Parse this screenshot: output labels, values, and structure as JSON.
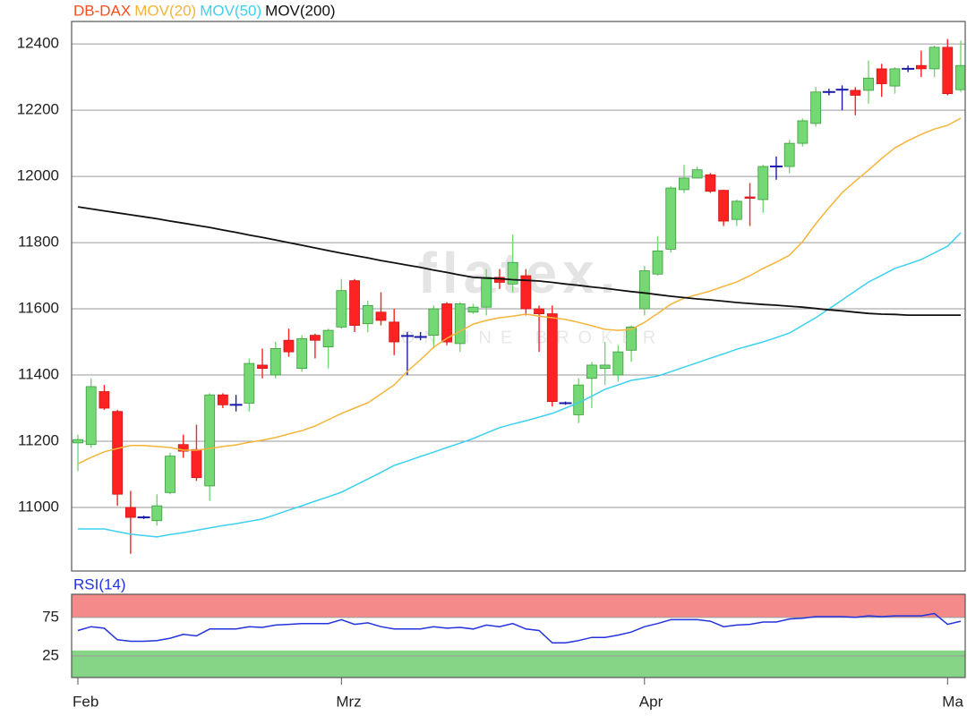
{
  "chart_data": [
    {
      "type": "candlestick",
      "watermark": "flatex.",
      "watermark_sub": "ONLINE BROKER",
      "ylim": [
        10808,
        12468
      ],
      "yticks": [
        11000,
        11200,
        11400,
        11600,
        11800,
        12000,
        12200,
        12400
      ],
      "grid": true,
      "series": [
        {
          "name": "DB-DAX",
          "color": "#ff4a1c",
          "up_color": "#74d874",
          "down_color": "#ff2222",
          "flat_color": "#1a1aa8",
          "open": [
            11195,
            11190,
            11350,
            11290,
            11000,
            10970,
            10960,
            11045,
            11190,
            11175,
            11065,
            11340,
            11310,
            11315,
            11430,
            11400,
            11505,
            11420,
            11520,
            11485,
            11545,
            11685,
            11555,
            11590,
            11560,
            11518,
            11515,
            11520,
            11615,
            11495,
            11590,
            11605,
            11695,
            11675,
            11700,
            11600,
            11585,
            11315,
            11280,
            11390,
            11420,
            11400,
            11475,
            11600,
            11705,
            11780,
            11960,
            11995,
            12005,
            11958,
            11870,
            11938,
            11930,
            12030,
            12030,
            12100,
            12160,
            12255,
            12262,
            12260,
            12260,
            12325,
            12273,
            12325,
            12335,
            12325,
            12390,
            12262
          ],
          "high": [
            11220,
            11390,
            11370,
            11295,
            11050,
            10975,
            11040,
            11165,
            11220,
            11250,
            11345,
            11345,
            11340,
            11450,
            11480,
            11500,
            11540,
            11520,
            11525,
            11540,
            11690,
            11690,
            11625,
            11650,
            11600,
            11530,
            11530,
            11610,
            11620,
            11620,
            11615,
            11720,
            11720,
            11825,
            11720,
            11610,
            11610,
            11320,
            11390,
            11440,
            11500,
            11490,
            11550,
            11730,
            11820,
            11970,
            12035,
            12030,
            12010,
            11960,
            11930,
            11980,
            12035,
            12060,
            12110,
            12175,
            12270,
            12265,
            12275,
            12270,
            12350,
            12340,
            12330,
            12335,
            12380,
            12395,
            12415,
            12410
          ],
          "low": [
            11110,
            11180,
            11295,
            11005,
            10860,
            10965,
            10945,
            11040,
            11150,
            11080,
            11020,
            11300,
            11290,
            11290,
            11390,
            11390,
            11455,
            11410,
            11450,
            11420,
            11540,
            11530,
            11530,
            11550,
            11460,
            11400,
            11505,
            11480,
            11490,
            11470,
            11585,
            11580,
            11660,
            11650,
            11580,
            11470,
            11305,
            11310,
            11255,
            11300,
            11370,
            11380,
            11440,
            11580,
            11700,
            11770,
            11950,
            11995,
            11950,
            11850,
            11850,
            11850,
            11890,
            11990,
            12010,
            12090,
            12150,
            12245,
            12200,
            12185,
            12220,
            12240,
            12250,
            12315,
            12300,
            12300,
            12245,
            12255
          ],
          "close": [
            11205,
            11365,
            11300,
            11040,
            10970,
            10970,
            11005,
            11155,
            11170,
            11090,
            11340,
            11310,
            11310,
            11435,
            11420,
            11480,
            11470,
            11510,
            11505,
            11535,
            11655,
            11550,
            11610,
            11565,
            11500,
            11518,
            11515,
            11600,
            11500,
            11615,
            11605,
            11695,
            11680,
            11740,
            11600,
            11585,
            11320,
            11315,
            11370,
            11430,
            11430,
            11470,
            11545,
            11715,
            11775,
            11965,
            11995,
            12020,
            11955,
            11865,
            11925,
            11935,
            12030,
            12030,
            12100,
            12168,
            12255,
            12255,
            12262,
            12245,
            12297,
            12280,
            12325,
            12325,
            12325,
            12390,
            12250,
            12335
          ]
        },
        {
          "name": "MOV(20)",
          "color": "#f4b43a",
          "values": [
            11132,
            11151,
            11168,
            11178,
            11187,
            11187,
            11184,
            11181,
            11173,
            11173,
            11178,
            11184,
            11189,
            11197,
            11203,
            11211,
            11222,
            11232,
            11246,
            11265,
            11284,
            11300,
            11316,
            11343,
            11370,
            11411,
            11446,
            11484,
            11511,
            11532,
            11554,
            11565,
            11573,
            11578,
            11584,
            11578,
            11573,
            11568,
            11559,
            11549,
            11538,
            11535,
            11538,
            11559,
            11586,
            11614,
            11632,
            11643,
            11654,
            11668,
            11681,
            11700,
            11722,
            11741,
            11762,
            11803,
            11857,
            11905,
            11951,
            11986,
            12019,
            12054,
            12086,
            12108,
            12127,
            12143,
            12154,
            12176
          ]
        },
        {
          "name": "MOV(50)",
          "color": "#3dd0f0",
          "values": [
            10935,
            10935,
            10935,
            10927,
            10919,
            10915,
            10911,
            10918,
            10924,
            10931,
            10938,
            10945,
            10951,
            10958,
            10965,
            10978,
            10992,
            11005,
            11019,
            11032,
            11046,
            11066,
            11086,
            11106,
            11127,
            11140,
            11154,
            11167,
            11181,
            11194,
            11208,
            11225,
            11241,
            11252,
            11262,
            11273,
            11284,
            11300,
            11316,
            11336,
            11357,
            11370,
            11384,
            11390,
            11397,
            11410,
            11424,
            11437,
            11451,
            11464,
            11478,
            11489,
            11500,
            11513,
            11527,
            11550,
            11573,
            11600,
            11627,
            11654,
            11681,
            11701,
            11722,
            11735,
            11749,
            11769,
            11789,
            11830
          ]
        },
        {
          "name": "MOV(200)",
          "color": "#111111",
          "values": [
            11908,
            11902,
            11896,
            11890,
            11884,
            11878,
            11872,
            11865,
            11859,
            11852,
            11846,
            11838,
            11831,
            11823,
            11816,
            11808,
            11800,
            11792,
            11784,
            11776,
            11768,
            11761,
            11754,
            11746,
            11739,
            11732,
            11725,
            11717,
            11710,
            11702,
            11695,
            11693,
            11691,
            11688,
            11686,
            11684,
            11680,
            11675,
            11671,
            11666,
            11662,
            11657,
            11652,
            11648,
            11643,
            11638,
            11634,
            11630,
            11627,
            11623,
            11619,
            11616,
            11613,
            11611,
            11608,
            11605,
            11601,
            11597,
            11594,
            11590,
            11586,
            11584,
            11583,
            11581,
            11581,
            11581,
            11581,
            11581
          ]
        }
      ]
    },
    {
      "type": "line",
      "categories": [
        "Feb",
        null,
        null,
        null,
        null,
        null,
        null,
        null,
        null,
        null,
        null,
        null,
        null,
        null,
        null,
        null,
        null,
        null,
        null,
        null,
        "Mrz",
        null,
        null,
        null,
        null,
        null,
        null,
        null,
        null,
        null,
        null,
        null,
        null,
        null,
        null,
        null,
        null,
        null,
        null,
        null,
        null,
        null,
        null,
        "Apr",
        null,
        null,
        null,
        null,
        null,
        null,
        null,
        null,
        null,
        null,
        null,
        null,
        null,
        null,
        null,
        null,
        null,
        null,
        null,
        null,
        null,
        null,
        "Ma",
        null
      ],
      "ylim": [
        -3,
        105
      ],
      "yticks": [
        25,
        75
      ],
      "grid": true,
      "bands": [
        {
          "from": 75,
          "to": 105,
          "color": "#f58a8a"
        },
        {
          "from": -3,
          "to": 32,
          "color": "#86d486"
        }
      ],
      "series": [
        {
          "name": "RSI(14)",
          "color": "#2233dd",
          "values": [
            58,
            63,
            61,
            46,
            44,
            44,
            45,
            48,
            53,
            51,
            60,
            60,
            60,
            63,
            62,
            65,
            66,
            67,
            67,
            67,
            72,
            66,
            68,
            63,
            60,
            60,
            60,
            63,
            61,
            62,
            60,
            65,
            63,
            67,
            60,
            58,
            42,
            42,
            45,
            49,
            49,
            52,
            56,
            63,
            67,
            72,
            72,
            72,
            70,
            63,
            65,
            66,
            69,
            69,
            73,
            74,
            76,
            76,
            76,
            75,
            77,
            76,
            77,
            77,
            77,
            80,
            66,
            70
          ]
        }
      ]
    }
  ]
}
